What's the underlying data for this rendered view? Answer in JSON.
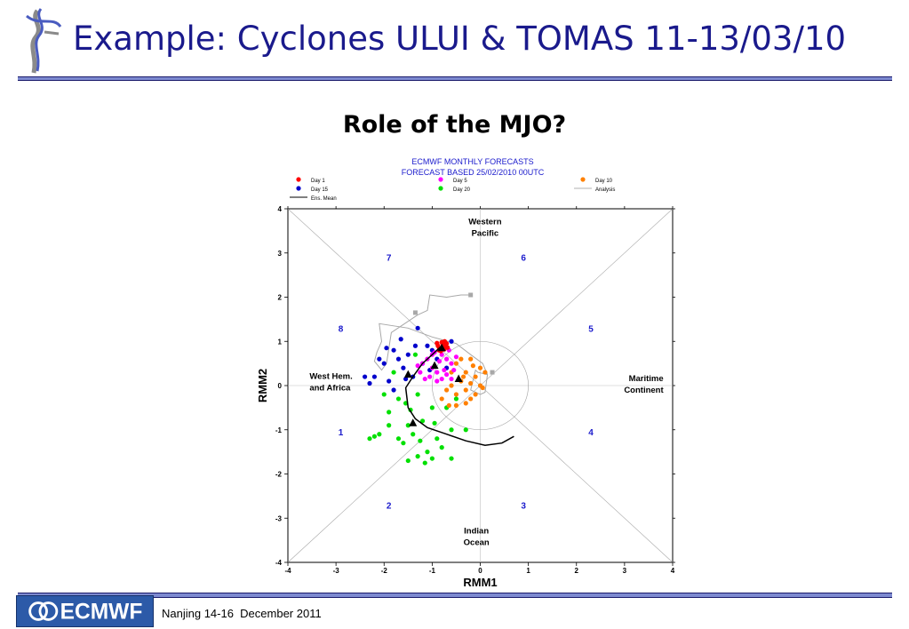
{
  "slide": {
    "title": "Example: Cyclones ULUI & TOMAS 11-13/03/10",
    "subtitle": "Role of the MJO?",
    "footer_text": "Nanjing 14-16  December 2011",
    "logo_text": "ECMWF",
    "colors": {
      "title": "#1a1a8c",
      "rule": "#7d8ad0",
      "logo_bg": "#2c5aa8"
    }
  },
  "chart_data": {
    "type": "scatter",
    "title": "ECMWF MONTHLY FORECASTS",
    "subtitle": "FORECAST  BASED 25/02/2010 00UTC",
    "xlabel": "RMM1",
    "ylabel": "RMM2",
    "xlim": [
      -4,
      4
    ],
    "ylim": [
      -4,
      4
    ],
    "xticks": [
      "-4",
      "-3",
      "-2",
      "-1",
      "0",
      "1",
      "2",
      "3",
      "4"
    ],
    "yticks": [
      "-4",
      "-3",
      "-2",
      "-1",
      "0",
      "1",
      "2",
      "3",
      "4"
    ],
    "phase_labels": [
      {
        "text": "1",
        "x": -2.9,
        "y": -1.05
      },
      {
        "text": "2",
        "x": -1.9,
        "y": -2.7
      },
      {
        "text": "3",
        "x": 0.9,
        "y": -2.7
      },
      {
        "text": "4",
        "x": 2.3,
        "y": -1.05
      },
      {
        "text": "5",
        "x": 2.3,
        "y": 1.3
      },
      {
        "text": "6",
        "x": 0.9,
        "y": 2.9
      },
      {
        "text": "7",
        "x": -1.9,
        "y": 2.9
      },
      {
        "text": "8",
        "x": -2.9,
        "y": 1.3
      }
    ],
    "region_labels": [
      {
        "lines": [
          "Western",
          "Pacific"
        ],
        "x": 0.1,
        "y": 3.65
      },
      {
        "lines": [
          "Indian",
          "Ocean"
        ],
        "x": -0.08,
        "y": -3.35
      },
      {
        "lines": [
          "West Hem.",
          "and Africa"
        ],
        "x": -3.55,
        "y": 0.15
      },
      {
        "lines": [
          "Maritime",
          "Continent"
        ],
        "x": 3.55,
        "y": 0.1
      }
    ],
    "legend": [
      {
        "label": "Day 1",
        "color": "#ff0000",
        "kind": "dot"
      },
      {
        "label": "Day 5",
        "color": "#ff00ff",
        "kind": "dot"
      },
      {
        "label": "Day 10",
        "color": "#ff8000",
        "kind": "dot"
      },
      {
        "label": "Day 15",
        "color": "#0000cc",
        "kind": "dot"
      },
      {
        "label": "Day 20",
        "color": "#00e000",
        "kind": "dot"
      },
      {
        "label": "Analysis",
        "color": "#b0b0b0",
        "kind": "line"
      },
      {
        "label": "Ens. Mean",
        "color": "#000000",
        "kind": "line"
      }
    ],
    "series": [
      {
        "name": "Day 1",
        "color": "#ff0000",
        "points": [
          [
            -0.78,
            0.93
          ],
          [
            -0.72,
            0.88
          ],
          [
            -0.85,
            0.85
          ],
          [
            -0.8,
            0.98
          ],
          [
            -0.7,
            0.95
          ],
          [
            -0.88,
            0.9
          ],
          [
            -0.75,
            0.82
          ],
          [
            -0.68,
            0.86
          ],
          [
            -0.82,
            0.78
          ],
          [
            -0.9,
            0.96
          ],
          [
            -0.74,
            1.0
          ],
          [
            -0.86,
            0.8
          ]
        ]
      },
      {
        "name": "Day 5",
        "color": "#ff00ff",
        "points": [
          [
            -1.2,
            0.5
          ],
          [
            -1.0,
            0.4
          ],
          [
            -0.8,
            0.7
          ],
          [
            -0.6,
            0.5
          ],
          [
            -0.9,
            0.3
          ],
          [
            -1.1,
            0.6
          ],
          [
            -0.7,
            0.25
          ],
          [
            -1.25,
            0.3
          ],
          [
            -0.5,
            0.65
          ],
          [
            -0.85,
            0.55
          ],
          [
            -1.05,
            0.2
          ],
          [
            -0.95,
            0.75
          ],
          [
            -0.65,
            0.8
          ],
          [
            -1.15,
            0.15
          ],
          [
            -0.75,
            0.35
          ],
          [
            -0.55,
            0.35
          ],
          [
            -0.9,
            0.1
          ],
          [
            -1.3,
            0.45
          ],
          [
            -0.6,
            0.15
          ],
          [
            -1.0,
            0.7
          ],
          [
            -0.8,
            0.15
          ],
          [
            -0.7,
            0.6
          ]
        ]
      },
      {
        "name": "Day 10",
        "color": "#ff8000",
        "points": [
          [
            -0.5,
            0.5
          ],
          [
            -0.3,
            0.3
          ],
          [
            -0.2,
            0.6
          ],
          [
            0.0,
            0.4
          ],
          [
            -0.4,
            0.1
          ],
          [
            -0.1,
            0.2
          ],
          [
            -0.3,
            -0.1
          ],
          [
            -0.6,
            0.0
          ],
          [
            -0.2,
            -0.3
          ],
          [
            -0.5,
            -0.2
          ],
          [
            -0.7,
            -0.1
          ],
          [
            0.1,
            0.3
          ],
          [
            -0.1,
            -0.2
          ],
          [
            -0.4,
            0.6
          ],
          [
            -0.6,
            0.3
          ],
          [
            -0.3,
            -0.4
          ],
          [
            -0.5,
            -0.45
          ],
          [
            -0.8,
            -0.3
          ],
          [
            -0.2,
            0.05
          ],
          [
            0.0,
            0.0
          ],
          [
            -0.15,
            0.45
          ],
          [
            -0.35,
            0.2
          ],
          [
            -0.65,
            -0.45
          ],
          [
            0.05,
            -0.05
          ]
        ]
      },
      {
        "name": "Day 15",
        "color": "#0000cc",
        "points": [
          [
            -2.2,
            0.2
          ],
          [
            -2.0,
            0.5
          ],
          [
            -1.8,
            0.8
          ],
          [
            -1.6,
            0.4
          ],
          [
            -1.9,
            0.1
          ],
          [
            -1.5,
            0.7
          ],
          [
            -1.3,
            1.3
          ],
          [
            -1.1,
            0.9
          ],
          [
            -2.4,
            0.2
          ],
          [
            -1.7,
            0.6
          ],
          [
            -1.4,
            0.2
          ],
          [
            -1.2,
            0.5
          ],
          [
            -1.0,
            0.8
          ],
          [
            -0.6,
            1.0
          ],
          [
            -0.7,
            0.4
          ],
          [
            -1.8,
            -0.1
          ],
          [
            -2.1,
            0.6
          ],
          [
            -1.65,
            1.05
          ],
          [
            -0.9,
            0.6
          ],
          [
            -1.35,
            0.9
          ],
          [
            -1.55,
            0.15
          ],
          [
            -2.3,
            0.05
          ],
          [
            -1.95,
            0.85
          ],
          [
            -1.05,
            0.35
          ]
        ]
      },
      {
        "name": "Day 20",
        "color": "#00e000",
        "points": [
          [
            -2.3,
            -1.2
          ],
          [
            -2.1,
            -1.1
          ],
          [
            -1.9,
            -0.6
          ],
          [
            -1.7,
            -0.3
          ],
          [
            -1.5,
            -0.9
          ],
          [
            -1.6,
            -1.3
          ],
          [
            -1.4,
            -1.1
          ],
          [
            -1.2,
            -0.8
          ],
          [
            -1.0,
            -0.5
          ],
          [
            -0.9,
            -1.2
          ],
          [
            -1.3,
            -1.6
          ],
          [
            -1.1,
            -1.5
          ],
          [
            -0.8,
            -1.4
          ],
          [
            -1.5,
            -1.7
          ],
          [
            -1.7,
            -1.2
          ],
          [
            -1.9,
            -0.9
          ],
          [
            -2.0,
            -0.2
          ],
          [
            -1.3,
            -0.2
          ],
          [
            -0.7,
            -0.5
          ],
          [
            -0.5,
            -0.3
          ],
          [
            -0.6,
            -1.0
          ],
          [
            -1.15,
            -1.75
          ],
          [
            -1.45,
            -0.55
          ],
          [
            -2.2,
            -1.15
          ],
          [
            -0.6,
            -1.65
          ],
          [
            -1.8,
            0.3
          ],
          [
            -1.35,
            0.7
          ],
          [
            -1.55,
            -0.4
          ],
          [
            -0.95,
            -0.85
          ],
          [
            -0.3,
            -1.0
          ],
          [
            -1.0,
            -1.65
          ],
          [
            -1.25,
            -1.25
          ]
        ]
      }
    ],
    "analysis_line": [
      [
        0.15,
        0.25
      ],
      [
        -0.05,
        0.3
      ],
      [
        -0.1,
        0.35
      ],
      [
        -0.2,
        -0.1
      ],
      [
        0.0,
        -0.2
      ],
      [
        0.1,
        -0.15
      ],
      [
        0.15,
        0.25
      ],
      [
        0.05,
        0.5
      ],
      [
        -0.2,
        0.7
      ],
      [
        -0.5,
        0.95
      ],
      [
        -1.0,
        1.1
      ],
      [
        -1.5,
        1.3
      ],
      [
        -2.1,
        1.4
      ],
      [
        -2.05,
        1.0
      ],
      [
        -2.15,
        0.75
      ],
      [
        -2.2,
        0.55
      ],
      [
        -2.05,
        0.35
      ],
      [
        -1.95,
        0.5
      ],
      [
        -1.85,
        1.2
      ],
      [
        -1.3,
        1.6
      ],
      [
        -1.1,
        1.7
      ],
      [
        -1.05,
        2.05
      ],
      [
        -0.7,
        2.0
      ],
      [
        -0.4,
        2.05
      ],
      [
        -0.2,
        2.05
      ]
    ],
    "analysis_markers": [
      [
        -1.35,
        1.65
      ],
      [
        -0.2,
        2.05
      ],
      [
        0.25,
        0.3
      ]
    ],
    "ens_mean": [
      [
        -0.8,
        0.9
      ],
      [
        -1.0,
        0.7
      ],
      [
        -1.2,
        0.5
      ],
      [
        -1.4,
        0.2
      ],
      [
        -1.55,
        -0.05
      ],
      [
        -1.5,
        -0.5
      ],
      [
        -1.35,
        -0.75
      ],
      [
        -1.1,
        -0.95
      ],
      [
        -0.7,
        -1.1
      ],
      [
        -0.3,
        -1.25
      ],
      [
        0.1,
        -1.35
      ],
      [
        0.45,
        -1.3
      ],
      [
        0.7,
        -1.15
      ]
    ],
    "ens_mean_markers": [
      [
        -0.8,
        0.85
      ],
      [
        -0.95,
        0.45
      ],
      [
        -0.45,
        0.15
      ],
      [
        -1.5,
        0.25
      ],
      [
        -1.4,
        -0.85
      ]
    ],
    "grid": false
  }
}
